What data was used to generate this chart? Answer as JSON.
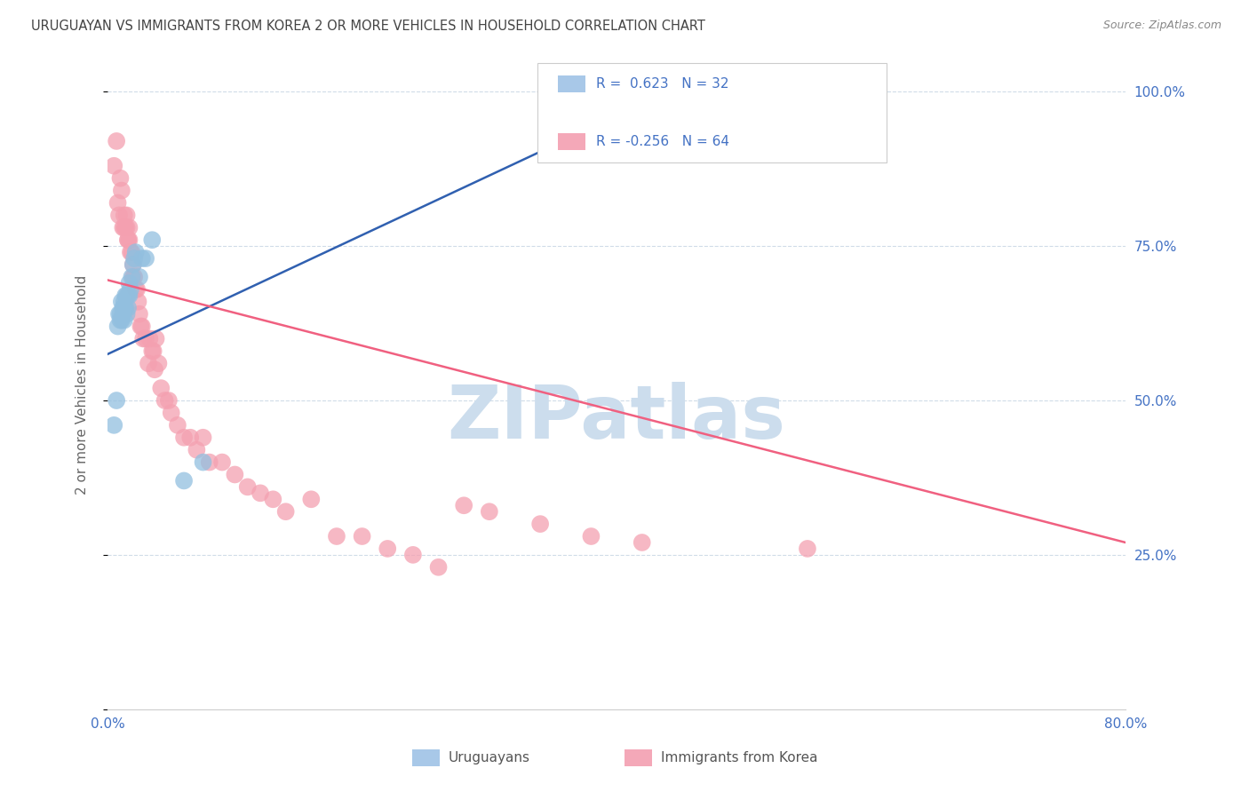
{
  "title": "URUGUAYAN VS IMMIGRANTS FROM KOREA 2 OR MORE VEHICLES IN HOUSEHOLD CORRELATION CHART",
  "source": "Source: ZipAtlas.com",
  "ylabel": "2 or more Vehicles in Household",
  "x_min": 0.0,
  "x_max": 0.8,
  "y_min": 0.0,
  "y_max": 1.05,
  "uruguayan_color": "#92bfdf",
  "korea_color": "#f4a0b0",
  "trend_uruguayan_color": "#3060b0",
  "trend_korea_color": "#f06080",
  "watermark": "ZIPatlas",
  "watermark_color": "#ccdded",
  "background_color": "#ffffff",
  "grid_color": "#d0dce8",
  "title_color": "#444444",
  "uruguayan_x": [
    0.005,
    0.007,
    0.008,
    0.009,
    0.01,
    0.01,
    0.011,
    0.011,
    0.012,
    0.012,
    0.013,
    0.013,
    0.013,
    0.014,
    0.014,
    0.015,
    0.015,
    0.016,
    0.016,
    0.017,
    0.017,
    0.018,
    0.019,
    0.02,
    0.021,
    0.022,
    0.025,
    0.027,
    0.03,
    0.035,
    0.06,
    0.075
  ],
  "uruguayan_y": [
    0.46,
    0.5,
    0.62,
    0.64,
    0.64,
    0.63,
    0.66,
    0.63,
    0.65,
    0.64,
    0.66,
    0.65,
    0.63,
    0.67,
    0.65,
    0.67,
    0.64,
    0.67,
    0.65,
    0.69,
    0.67,
    0.68,
    0.7,
    0.72,
    0.73,
    0.74,
    0.7,
    0.73,
    0.73,
    0.76,
    0.37,
    0.4
  ],
  "korea_x": [
    0.005,
    0.007,
    0.008,
    0.009,
    0.01,
    0.011,
    0.012,
    0.013,
    0.013,
    0.014,
    0.015,
    0.015,
    0.016,
    0.016,
    0.017,
    0.017,
    0.018,
    0.019,
    0.02,
    0.02,
    0.021,
    0.022,
    0.023,
    0.024,
    0.025,
    0.026,
    0.027,
    0.028,
    0.03,
    0.032,
    0.033,
    0.035,
    0.036,
    0.037,
    0.038,
    0.04,
    0.042,
    0.045,
    0.048,
    0.05,
    0.055,
    0.06,
    0.065,
    0.07,
    0.075,
    0.08,
    0.09,
    0.1,
    0.11,
    0.12,
    0.13,
    0.14,
    0.16,
    0.18,
    0.2,
    0.22,
    0.24,
    0.26,
    0.28,
    0.3,
    0.34,
    0.38,
    0.42,
    0.55
  ],
  "korea_y": [
    0.88,
    0.92,
    0.82,
    0.8,
    0.86,
    0.84,
    0.78,
    0.8,
    0.78,
    0.78,
    0.8,
    0.78,
    0.76,
    0.76,
    0.78,
    0.76,
    0.74,
    0.74,
    0.72,
    0.7,
    0.7,
    0.68,
    0.68,
    0.66,
    0.64,
    0.62,
    0.62,
    0.6,
    0.6,
    0.56,
    0.6,
    0.58,
    0.58,
    0.55,
    0.6,
    0.56,
    0.52,
    0.5,
    0.5,
    0.48,
    0.46,
    0.44,
    0.44,
    0.42,
    0.44,
    0.4,
    0.4,
    0.38,
    0.36,
    0.35,
    0.34,
    0.32,
    0.34,
    0.28,
    0.28,
    0.26,
    0.25,
    0.23,
    0.33,
    0.32,
    0.3,
    0.28,
    0.27,
    0.26
  ],
  "trend_uru_x0": 0.0,
  "trend_uru_y0": 0.575,
  "trend_uru_x1": 0.42,
  "trend_uru_y1": 0.98,
  "trend_kor_x0": 0.0,
  "trend_kor_y0": 0.695,
  "trend_kor_x1": 0.8,
  "trend_kor_y1": 0.27
}
